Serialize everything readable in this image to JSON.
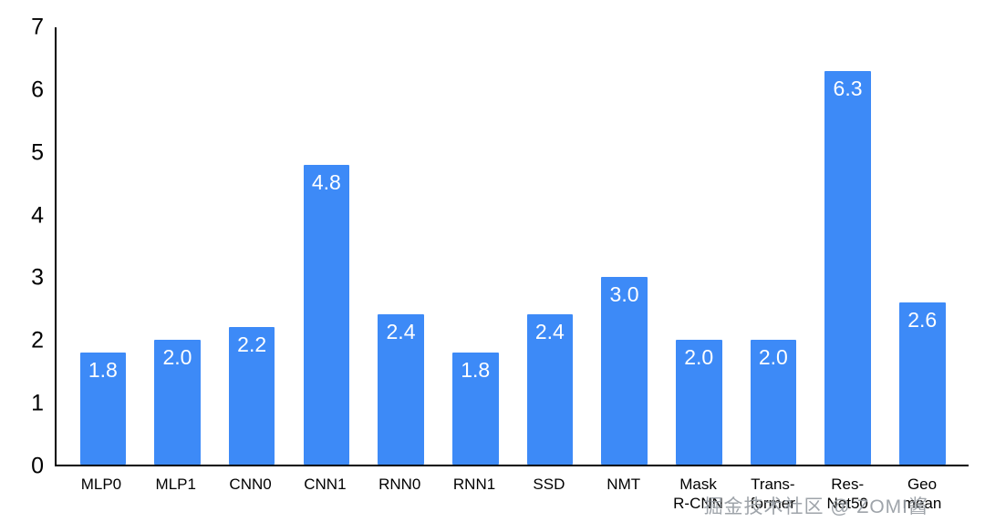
{
  "chart_data": {
    "type": "bar",
    "categories": [
      "MLP0",
      "MLP1",
      "CNN0",
      "CNN1",
      "RNN0",
      "RNN1",
      "SSD",
      "NMT",
      "Mask\nR-CNN",
      "Trans-\nformer",
      "Res-\nNet50",
      "Geo\nmean"
    ],
    "values": [
      1.8,
      2.0,
      2.2,
      4.8,
      2.4,
      1.8,
      2.4,
      3.0,
      2.0,
      2.0,
      6.3,
      2.6
    ],
    "value_labels": [
      "1.8",
      "2.0",
      "2.2",
      "4.8",
      "2.4",
      "1.8",
      "2.4",
      "3.0",
      "2.0",
      "2.0",
      "6.3",
      "2.6"
    ],
    "title": "",
    "xlabel": "",
    "ylabel": "",
    "ylim": [
      0,
      7
    ],
    "y_ticks": [
      0,
      1,
      2,
      3,
      4,
      5,
      6,
      7
    ],
    "grid": false,
    "legend": false,
    "bar_color": "#3d8af7",
    "value_label_color": "#ffffff",
    "axis_color": "#000000"
  },
  "watermark": {
    "text": "掘金技术社区 @ ZOMI酱",
    "color": "#9aa0a6"
  }
}
